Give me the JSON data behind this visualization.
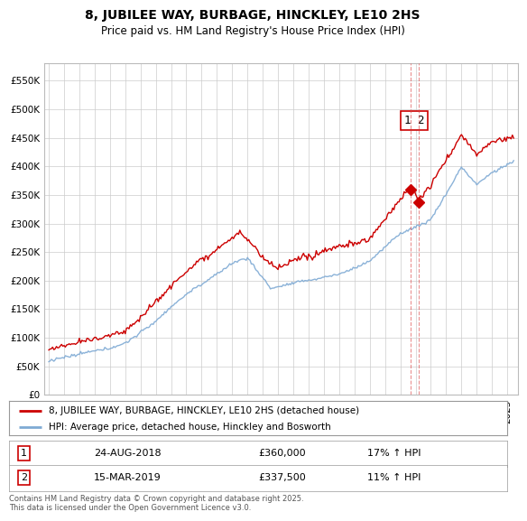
{
  "title": "8, JUBILEE WAY, BURBAGE, HINCKLEY, LE10 2HS",
  "subtitle": "Price paid vs. HM Land Registry's House Price Index (HPI)",
  "legend_label_1": "8, JUBILEE WAY, BURBAGE, HINCKLEY, LE10 2HS (detached house)",
  "legend_label_2": "HPI: Average price, detached house, Hinckley and Bosworth",
  "sale_1_date": "24-AUG-2018",
  "sale_1_price": "£360,000",
  "sale_1_hpi": "17% ↑ HPI",
  "sale_2_date": "15-MAR-2019",
  "sale_2_price": "£337,500",
  "sale_2_hpi": "11% ↑ HPI",
  "footer": "Contains HM Land Registry data © Crown copyright and database right 2025.\nThis data is licensed under the Open Government Licence v3.0.",
  "color_red": "#cc0000",
  "color_blue": "#7faad4",
  "ylim_min": 0,
  "ylim_max": 580000,
  "yticks": [
    0,
    50000,
    100000,
    150000,
    200000,
    250000,
    300000,
    350000,
    400000,
    450000,
    500000,
    550000
  ],
  "sale1_x": 2018.65,
  "sale2_x": 2019.21,
  "xmin": 1994.7,
  "xmax": 2025.7
}
